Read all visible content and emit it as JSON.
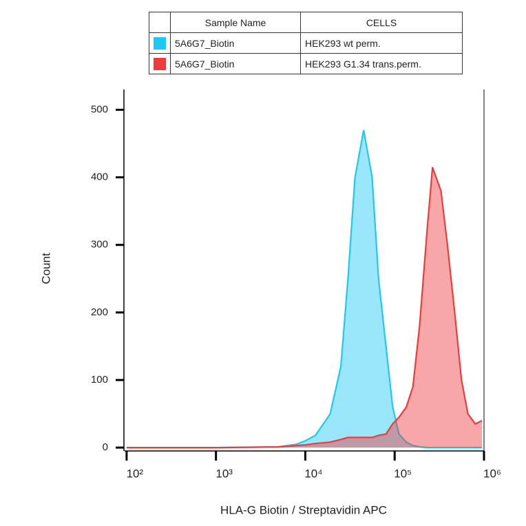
{
  "chart_data": {
    "type": "area",
    "x_label": "HLA-G Biotin / Streptavidin APC",
    "y_label": "Count",
    "legend_columns": [
      "Sample Name",
      "CELLS"
    ],
    "log_x": true,
    "xlim": [
      95,
      1000000
    ],
    "xticks": [
      {
        "value": 100,
        "label": "10²"
      },
      {
        "value": 1000,
        "label": "10³"
      },
      {
        "value": 10000,
        "label": "10⁴"
      },
      {
        "value": 100000,
        "label": "10⁵"
      },
      {
        "value": 1000000,
        "label": "10⁶"
      }
    ],
    "ylim": [
      -5,
      530
    ],
    "yticks": [
      0,
      100,
      200,
      300,
      400,
      500
    ],
    "x": [
      100,
      1000,
      5000,
      8000,
      10000,
      13000,
      19000,
      25000,
      30000,
      36000,
      45000,
      56000,
      66000,
      80000,
      95000,
      112000,
      135000,
      160000,
      190000,
      230000,
      265000,
      330000,
      390000,
      470000,
      560000,
      660000,
      800000,
      950000
    ],
    "series": [
      {
        "name": "5A6G7_Biotin",
        "cells": "HEK293 wt perm.",
        "color": "#1ec8f5",
        "values": [
          0,
          0,
          1,
          5,
          10,
          18,
          50,
          120,
          250,
          400,
          470,
          400,
          250,
          150,
          60,
          20,
          8,
          3,
          1,
          0,
          0,
          0,
          0,
          0,
          0,
          0,
          0,
          0
        ]
      },
      {
        "name": "5A6G7_Biotin",
        "cells": "HEK293 G1.34 trans.perm.",
        "color": "#ee3b3b",
        "values": [
          0,
          0,
          1,
          3,
          4,
          6,
          8,
          12,
          15,
          15,
          15,
          15,
          18,
          20,
          35,
          45,
          60,
          90,
          180,
          320,
          415,
          380,
          300,
          200,
          100,
          50,
          35,
          40
        ]
      }
    ]
  }
}
